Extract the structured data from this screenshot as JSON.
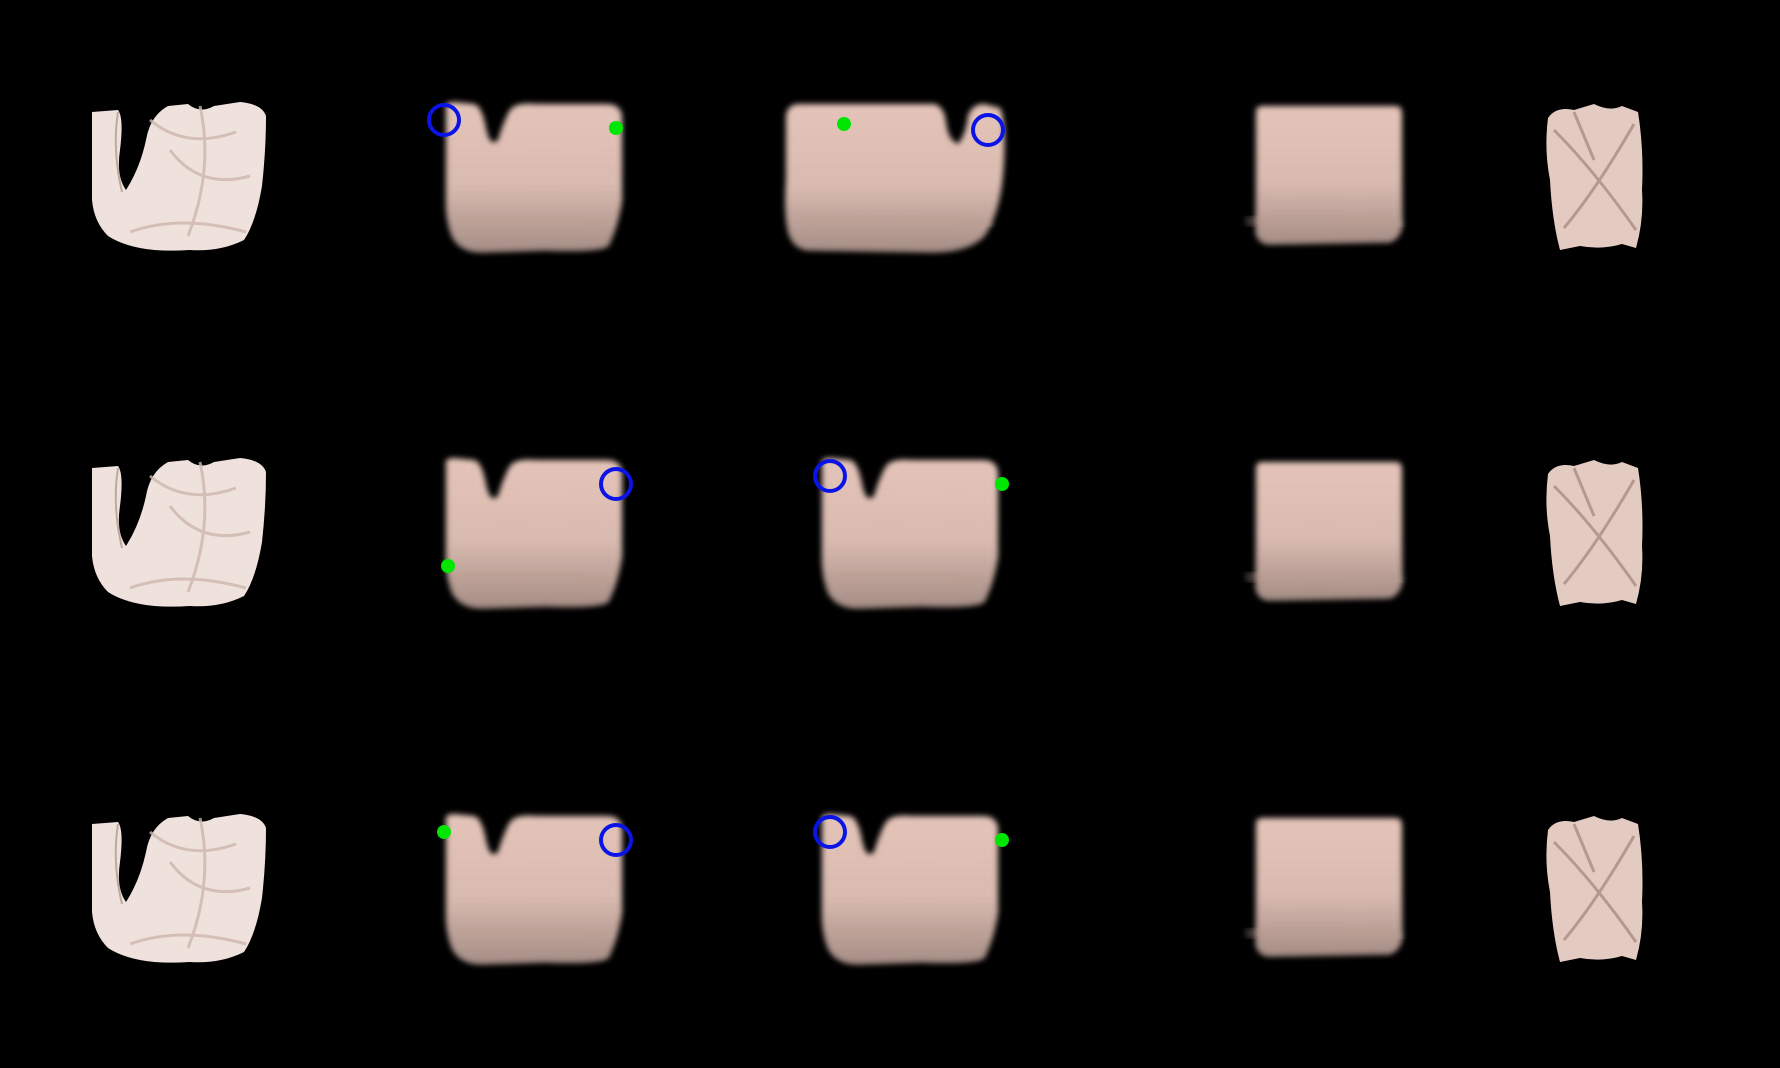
{
  "figure": {
    "background": "#000000",
    "rows": [
      {
        "name": "row-1",
        "cells": [
          {
            "kind": "real-crumpled",
            "desc_icon": "crumpled-cloth-icon"
          },
          {
            "kind": "predicted",
            "notch": "left",
            "pick": "left-top",
            "place": "right-top"
          },
          {
            "kind": "predicted",
            "notch": "right",
            "pick": "right-top",
            "place": "left-top"
          },
          {
            "kind": "predicted-flat"
          },
          {
            "kind": "real-folded",
            "desc_icon": "folded-cloth-icon"
          }
        ]
      },
      {
        "name": "row-2",
        "cells": [
          {
            "kind": "real-crumpled",
            "desc_icon": "crumpled-cloth-icon"
          },
          {
            "kind": "predicted",
            "notch": "left",
            "pick": "right-top",
            "place": "left-mid"
          },
          {
            "kind": "predicted",
            "notch": "left",
            "pick": "left-top",
            "place": "right-top"
          },
          {
            "kind": "predicted-flat"
          },
          {
            "kind": "real-folded",
            "desc_icon": "folded-cloth-icon"
          }
        ]
      },
      {
        "name": "row-3",
        "cells": [
          {
            "kind": "real-crumpled",
            "desc_icon": "crumpled-cloth-icon"
          },
          {
            "kind": "predicted",
            "notch": "left",
            "pick": "right-top",
            "place": "left-top"
          },
          {
            "kind": "predicted",
            "notch": "left",
            "pick": "left-top",
            "place": "right-top"
          },
          {
            "kind": "predicted-flat"
          },
          {
            "kind": "real-folded",
            "desc_icon": "folded-cloth-icon"
          }
        ]
      }
    ],
    "colors": {
      "cloth_real": "#efe2dc",
      "cloth_real_shadow": "#cdb6ac",
      "cloth_pred": "#e2c0b4",
      "cloth_pred_dark": "#b99c90",
      "pick_marker": "#0a14e6",
      "place_marker": "#00e600"
    }
  }
}
